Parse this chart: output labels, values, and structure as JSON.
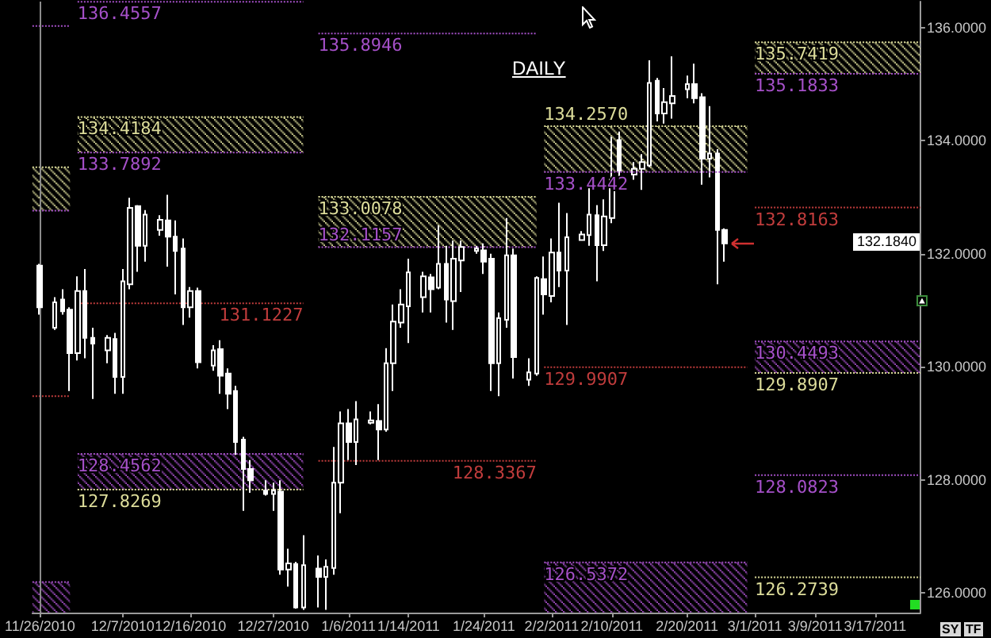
{
  "chart_data": {
    "type": "candlestick",
    "title": "DAILY",
    "color": "#ffffff",
    "marker": "none",
    "line_style": "dotted",
    "x": [
      "2010-11-26",
      "2010-11-28",
      "2010-11-29",
      "2010-11-30",
      "2010-12-01",
      "2010-12-02",
      "2010-12-03",
      "2010-12-05",
      "2010-12-06",
      "2010-12-07",
      "2010-12-08",
      "2010-12-09",
      "2010-12-10",
      "2010-12-12",
      "2010-12-13",
      "2010-12-14",
      "2010-12-15",
      "2010-12-16",
      "2010-12-17",
      "2010-12-19",
      "2010-12-20",
      "2010-12-21",
      "2010-12-22",
      "2010-12-23",
      "2010-12-24",
      "2010-12-26",
      "2010-12-27",
      "2010-12-28",
      "2010-12-29",
      "2010-12-30",
      "2010-12-31",
      "2011-01-02",
      "2011-01-03",
      "2011-01-04",
      "2011-01-05",
      "2011-01-06",
      "2011-01-07",
      "2011-01-09",
      "2011-01-10",
      "2011-01-11",
      "2011-01-12",
      "2011-01-13",
      "2011-01-14",
      "2011-01-16",
      "2011-01-17",
      "2011-01-18",
      "2011-01-19",
      "2011-01-20",
      "2011-01-21",
      "2011-01-23",
      "2011-01-24",
      "2011-01-25",
      "2011-01-26",
      "2011-01-27",
      "2011-01-28",
      "2011-01-30",
      "2011-01-31",
      "2011-02-01",
      "2011-02-02",
      "2011-02-03",
      "2011-02-04",
      "2011-02-06",
      "2011-02-07",
      "2011-02-08",
      "2011-02-09",
      "2011-02-10",
      "2011-02-11",
      "2011-02-13",
      "2011-02-14",
      "2011-02-15",
      "2011-02-16",
      "2011-02-17",
      "2011-02-18",
      "2011-02-20",
      "2011-02-21",
      "2011-02-22",
      "2011-02-23",
      "2011-02-24",
      "2011-02-25"
    ],
    "ohlc": [
      [
        131.79,
        131.82,
        130.92,
        131.05
      ],
      [
        130.69,
        131.23,
        130.65,
        131.14
      ],
      [
        131.19,
        131.37,
        130.92,
        130.98
      ],
      [
        131.01,
        131.05,
        129.57,
        130.24
      ],
      [
        130.24,
        131.6,
        130.11,
        131.34
      ],
      [
        131.34,
        131.73,
        130.15,
        130.51
      ],
      [
        130.51,
        130.69,
        129.43,
        130.41
      ],
      [
        130.29,
        130.56,
        130.06,
        130.51
      ],
      [
        130.49,
        130.6,
        129.52,
        129.82
      ],
      [
        129.82,
        131.73,
        129.52,
        131.51
      ],
      [
        131.46,
        132.99,
        131.37,
        132.81
      ],
      [
        132.84,
        132.86,
        131.68,
        132.14
      ],
      [
        132.14,
        132.77,
        131.86,
        132.69
      ],
      [
        132.42,
        132.68,
        132.32,
        132.6
      ],
      [
        132.59,
        133.04,
        131.77,
        132.3
      ],
      [
        132.3,
        132.59,
        131.28,
        132.05
      ],
      [
        132.09,
        132.27,
        130.74,
        131.05
      ],
      [
        131.05,
        131.41,
        130.87,
        131.34
      ],
      [
        131.34,
        131.4,
        129.97,
        130.08
      ],
      [
        130.02,
        130.38,
        129.93,
        130.29
      ],
      [
        130.31,
        130.47,
        129.52,
        129.84
      ],
      [
        129.88,
        129.97,
        129.25,
        129.52
      ],
      [
        129.57,
        129.66,
        128.44,
        128.67
      ],
      [
        128.71,
        128.76,
        127.45,
        128.19
      ],
      [
        128.19,
        128.35,
        127.77,
        127.99
      ],
      [
        127.81,
        127.99,
        127.72,
        127.75
      ],
      [
        127.75,
        127.95,
        127.45,
        127.81
      ],
      [
        127.79,
        127.99,
        126.32,
        126.41
      ],
      [
        126.41,
        126.78,
        126.11,
        126.52
      ],
      [
        126.51,
        126.55,
        125.72,
        125.74
      ],
      [
        125.74,
        127.02,
        125.7,
        126.49
      ],
      [
        126.43,
        126.66,
        125.74,
        126.28
      ],
      [
        126.28,
        126.59,
        125.7,
        126.46
      ],
      [
        126.44,
        128.58,
        126.32,
        127.95
      ],
      [
        127.95,
        129.21,
        127.41,
        129.0
      ],
      [
        129.0,
        129.25,
        128.35,
        128.67
      ],
      [
        128.67,
        129.39,
        128.26,
        129.07
      ],
      [
        129.01,
        129.21,
        128.98,
        129.05
      ],
      [
        129.04,
        129.34,
        128.35,
        128.89
      ],
      [
        128.89,
        130.33,
        128.85,
        130.06
      ],
      [
        130.06,
        131.1,
        129.57,
        130.8
      ],
      [
        130.78,
        131.37,
        130.69,
        131.1
      ],
      [
        131.07,
        131.91,
        130.42,
        131.67
      ],
      [
        131.23,
        131.68,
        130.96,
        131.6
      ],
      [
        131.58,
        131.64,
        130.96,
        131.37
      ],
      [
        131.4,
        132.5,
        131.37,
        131.82
      ],
      [
        131.82,
        132.14,
        130.78,
        131.19
      ],
      [
        131.16,
        132.23,
        130.65,
        131.91
      ],
      [
        131.88,
        132.23,
        131.32,
        132.12
      ],
      [
        132.05,
        132.14,
        132.0,
        132.09
      ],
      [
        132.06,
        132.18,
        131.64,
        131.86
      ],
      [
        131.91,
        132.0,
        129.57,
        130.06
      ],
      [
        130.06,
        130.96,
        129.48,
        130.86
      ],
      [
        130.83,
        132.63,
        130.69,
        131.97
      ],
      [
        131.97,
        132.09,
        129.79,
        130.17
      ],
      [
        129.77,
        130.15,
        129.66,
        129.9
      ],
      [
        129.88,
        131.6,
        129.84,
        131.57
      ],
      [
        131.55,
        131.95,
        130.92,
        131.28
      ],
      [
        131.25,
        132.27,
        131.14,
        132.02
      ],
      [
        132.02,
        132.9,
        131.41,
        131.7
      ],
      [
        131.7,
        132.72,
        130.74,
        132.29
      ],
      [
        132.24,
        132.4,
        132.23,
        132.34
      ],
      [
        132.33,
        133.22,
        132.14,
        132.69
      ],
      [
        132.68,
        132.86,
        131.51,
        132.15
      ],
      [
        132.15,
        132.96,
        132.05,
        132.66
      ],
      [
        132.63,
        134.07,
        132.54,
        133.31
      ],
      [
        134.01,
        134.16,
        133.31,
        133.47
      ],
      [
        133.4,
        133.62,
        133.31,
        133.5
      ],
      [
        133.5,
        133.76,
        133.13,
        133.62
      ],
      [
        133.56,
        135.42,
        133.53,
        135.02
      ],
      [
        135.06,
        135.11,
        134.34,
        134.48
      ],
      [
        134.48,
        134.93,
        134.3,
        134.68
      ],
      [
        134.66,
        135.49,
        134.39,
        134.79
      ],
      [
        134.91,
        135.15,
        134.75,
        135.0
      ],
      [
        135.0,
        135.36,
        134.66,
        134.75
      ],
      [
        134.77,
        134.84,
        133.22,
        133.68
      ],
      [
        133.68,
        134.61,
        133.35,
        133.77
      ],
      [
        133.77,
        133.85,
        131.46,
        132.42
      ],
      [
        132.42,
        132.45,
        131.86,
        132.18
      ]
    ],
    "series": [
      {
        "type": "line",
        "x": [
          "2010-11-25",
          "2010-11-30"
        ],
        "values": [
          136.03,
          136.03
        ],
        "color": "#a550c8"
      },
      {
        "type": "line",
        "x": [
          "2010-11-25",
          "2010-11-30"
        ],
        "values": [
          133.53,
          133.53
        ],
        "color": "#dcdc9a",
        "lower": [
          132.76,
          132.76
        ],
        "upper": [
          133.53,
          133.53
        ]
      },
      {
        "type": "line",
        "x": [
          "2010-11-25",
          "2010-11-30"
        ],
        "values": [
          132.76,
          132.76
        ],
        "color": "#a550c8"
      },
      {
        "type": "line",
        "x": [
          "2010-11-25",
          "2010-11-30"
        ],
        "values": [
          129.48,
          129.48
        ],
        "color": "#c03c3c"
      },
      {
        "type": "line",
        "x": [
          "2010-11-25",
          "2010-11-30"
        ],
        "values": [
          126.19,
          126.19
        ],
        "color": "#a550c8",
        "lower": [
          125.65,
          125.65
        ],
        "upper": [
          126.19,
          126.19
        ]
      },
      {
        "type": "line",
        "x": [
          "2010-12-01",
          "2010-12-31"
        ],
        "values": [
          136.4557,
          136.4557
        ],
        "color": "#a550c8",
        "value_labels": [
          "136.4557",
          null
        ]
      },
      {
        "type": "line",
        "x": [
          "2010-12-01",
          "2010-12-31"
        ],
        "values": [
          134.4184,
          134.4184
        ],
        "color": "#dcdc9a",
        "value_labels": [
          "134.4184",
          null
        ],
        "lower": [
          133.7892,
          133.7892
        ],
        "upper": [
          134.4184,
          134.4184
        ]
      },
      {
        "type": "line",
        "x": [
          "2010-12-01",
          "2010-12-31"
        ],
        "values": [
          133.7892,
          133.7892
        ],
        "color": "#a550c8",
        "value_labels": [
          "133.7892",
          null
        ]
      },
      {
        "type": "line",
        "x": [
          "2010-12-01",
          "2010-12-31"
        ],
        "values": [
          131.1227,
          131.1227
        ],
        "color": "#c03c3c",
        "value_labels": [
          null,
          "131.1227"
        ]
      },
      {
        "type": "line",
        "x": [
          "2010-12-01",
          "2010-12-31"
        ],
        "values": [
          128.4562,
          128.4562
        ],
        "color": "#a550c8",
        "value_labels": [
          "128.4562",
          null
        ],
        "lower": [
          127.8269,
          127.8269
        ],
        "upper": [
          128.4562,
          128.4562
        ]
      },
      {
        "type": "line",
        "x": [
          "2010-12-01",
          "2010-12-31"
        ],
        "values": [
          127.8269,
          127.8269
        ],
        "color": "#dcdc9a",
        "value_labels": [
          "127.8269",
          null
        ]
      },
      {
        "type": "line",
        "x": [
          "2011-01-02",
          "2011-01-31"
        ],
        "values": [
          135.8946,
          135.8946
        ],
        "color": "#a550c8",
        "value_labels": [
          "135.8946",
          null
        ]
      },
      {
        "type": "line",
        "x": [
          "2011-01-02",
          "2011-01-31"
        ],
        "values": [
          133.0078,
          133.0078
        ],
        "color": "#dcdc9a",
        "value_labels": [
          "133.0078",
          null
        ],
        "lower": [
          132.1157,
          132.1157
        ],
        "upper": [
          133.0078,
          133.0078
        ]
      },
      {
        "type": "line",
        "x": [
          "2011-01-02",
          "2011-01-31"
        ],
        "values": [
          132.1157,
          132.1157
        ],
        "color": "#a550c8",
        "value_labels": [
          "132.1157",
          null
        ]
      },
      {
        "type": "line",
        "x": [
          "2011-01-02",
          "2011-01-31"
        ],
        "values": [
          128.3367,
          128.3367
        ],
        "color": "#c03c3c",
        "value_labels": [
          null,
          "128.3367"
        ]
      },
      {
        "type": "line",
        "x": [
          "2011-02-01",
          "2011-02-28"
        ],
        "values": [
          134.257,
          134.257
        ],
        "color": "#dcdc9a",
        "value_labels": [
          "134.2570",
          null
        ],
        "lower": [
          133.4442,
          133.4442
        ],
        "upper": [
          134.257,
          134.257
        ]
      },
      {
        "type": "line",
        "x": [
          "2011-02-01",
          "2011-02-28"
        ],
        "values": [
          133.4442,
          133.4442
        ],
        "color": "#a550c8",
        "value_labels": [
          "133.4442",
          null
        ]
      },
      {
        "type": "line",
        "x": [
          "2011-02-01",
          "2011-02-28"
        ],
        "values": [
          129.9907,
          129.9907
        ],
        "color": "#c03c3c",
        "value_labels": [
          "129.9907",
          null
        ]
      },
      {
        "type": "line",
        "x": [
          "2011-02-01",
          "2011-02-28"
        ],
        "values": [
          126.5372,
          126.5372
        ],
        "color": "#a550c8",
        "value_labels": [
          "126.5372",
          null
        ],
        "lower": [
          125.65,
          125.65
        ],
        "upper": [
          126.5372,
          126.5372
        ]
      },
      {
        "type": "line",
        "x": [
          "2011-03-01",
          "2011-03-23"
        ],
        "values": [
          135.7419,
          135.7419
        ],
        "color": "#dcdc9a",
        "value_labels": [
          "135.7419",
          null
        ],
        "lower": [
          135.1833,
          135.1833
        ],
        "upper": [
          135.7419,
          135.7419
        ]
      },
      {
        "type": "line",
        "x": [
          "2011-03-01",
          "2011-03-23"
        ],
        "values": [
          135.1833,
          135.1833
        ],
        "color": "#a550c8",
        "value_labels": [
          "135.1833",
          null
        ]
      },
      {
        "type": "line",
        "x": [
          "2011-03-01",
          "2011-03-23"
        ],
        "values": [
          132.8163,
          132.8163
        ],
        "color": "#c03c3c",
        "value_labels": [
          "132.8163",
          null
        ]
      },
      {
        "type": "line",
        "x": [
          "2011-03-01",
          "2011-03-23"
        ],
        "values": [
          130.4493,
          130.4493
        ],
        "color": "#a550c8",
        "value_labels": [
          "130.4493",
          null
        ],
        "lower": [
          129.8907,
          129.8907
        ],
        "upper": [
          130.4493,
          130.4493
        ]
      },
      {
        "type": "line",
        "x": [
          "2011-03-01",
          "2011-03-23"
        ],
        "values": [
          129.8907,
          129.8907
        ],
        "color": "#dcdc9a",
        "value_labels": [
          "129.8907",
          null
        ]
      },
      {
        "type": "line",
        "x": [
          "2011-03-01",
          "2011-03-23"
        ],
        "values": [
          128.0823,
          128.0823
        ],
        "color": "#a550c8",
        "value_labels": [
          "128.0823",
          null
        ]
      },
      {
        "type": "line",
        "x": [
          "2011-03-01",
          "2011-03-23"
        ],
        "values": [
          126.2739,
          126.2739
        ],
        "color": "#dcdc9a",
        "value_labels": [
          "126.2739",
          null
        ]
      }
    ],
    "xlim": [
      "2010-11-25",
      "2011-03-23"
    ],
    "xticks": [
      {
        "value": "2010-11-26",
        "label": "11/26/2010"
      },
      {
        "value": "2010-12-07",
        "label": "12/7/2010"
      },
      {
        "value": "2010-12-16",
        "label": "12/16/2010"
      },
      {
        "value": "2010-12-27",
        "label": "12/27/2010"
      },
      {
        "value": "2011-01-06",
        "label": "1/6/2011"
      },
      {
        "value": "2011-01-14",
        "label": "1/14/2011"
      },
      {
        "value": "2011-01-24",
        "label": "1/24/2011"
      },
      {
        "value": "2011-02-02",
        "label": "2/2/2011"
      },
      {
        "value": "2011-02-10",
        "label": "2/10/2011"
      },
      {
        "value": "2011-02-20",
        "label": "2/20/2011"
      },
      {
        "value": "2011-03-01",
        "label": "3/1/2011"
      },
      {
        "value": "2011-03-09",
        "label": "3/9/2011"
      },
      {
        "value": "2011-03-17",
        "label": "3/17/2011"
      }
    ],
    "ylim": [
      125.65,
      136.46
    ],
    "yticks": [
      {
        "value": 126,
        "label": "126.0000"
      },
      {
        "value": 128,
        "label": "128.0000"
      },
      {
        "value": 130,
        "label": "130.0000"
      },
      {
        "value": 132,
        "label": "132.0000"
      },
      {
        "value": 134,
        "label": "134.0000"
      },
      {
        "value": 136,
        "label": "136.0000"
      }
    ],
    "ref_lines": [
      {
        "axis": "x",
        "value": "2010-11-26",
        "color": "#8c8c8c"
      }
    ],
    "annotations": [
      "132.1840",
      "SY",
      "TF"
    ]
  }
}
